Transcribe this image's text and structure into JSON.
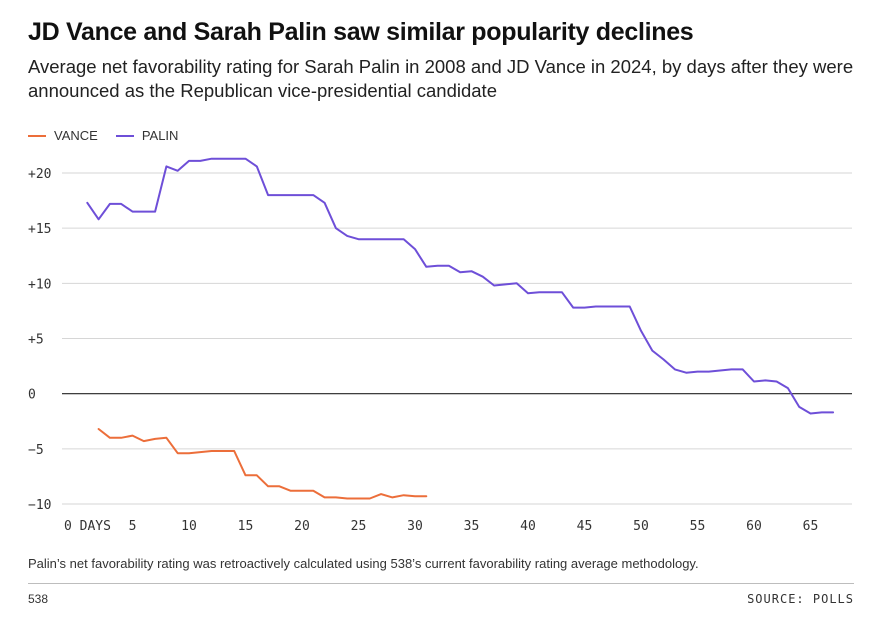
{
  "chart_data": {
    "type": "line",
    "title": "JD Vance and Sarah Palin saw similar popularity declines",
    "subtitle": "Average net favorability rating for Sarah Palin in 2008 and JD Vance in 2024, by days after they were announced as the Republican vice-presidential candidate",
    "xlabel": "DAYS",
    "ylabel": "",
    "xlim": [
      0,
      67
    ],
    "ylim": [
      -10,
      20
    ],
    "x_ticks": [
      0,
      5,
      10,
      15,
      20,
      25,
      30,
      35,
      40,
      45,
      50,
      55,
      60,
      65
    ],
    "x_tick_labels": [
      "0 DAYS",
      "5",
      "10",
      "15",
      "20",
      "25",
      "30",
      "35",
      "40",
      "45",
      "50",
      "55",
      "60",
      "65"
    ],
    "y_ticks": [
      -10,
      -5,
      0,
      5,
      10,
      15,
      20
    ],
    "y_tick_labels": [
      "−10",
      "−5",
      "0",
      "+5",
      "+10",
      "+15",
      "+20"
    ],
    "grid": true,
    "legend_position": "top-left",
    "series": [
      {
        "name": "VANCE",
        "color": "#ec6e3a",
        "x": [
          2,
          3,
          4,
          5,
          6,
          7,
          8,
          9,
          10,
          11,
          12,
          13,
          14,
          15,
          16,
          17,
          18,
          19,
          20,
          21,
          22,
          23,
          24,
          25,
          26,
          27,
          28,
          29,
          30,
          31
        ],
        "y": [
          -3.2,
          -4.0,
          -4.0,
          -3.8,
          -4.3,
          -4.1,
          -4.0,
          -5.4,
          -5.4,
          -5.3,
          -5.2,
          -5.2,
          -5.2,
          -7.4,
          -7.4,
          -8.4,
          -8.4,
          -8.8,
          -8.8,
          -8.8,
          -9.4,
          -9.4,
          -9.5,
          -9.5,
          -9.5,
          -9.1,
          -9.4,
          -9.2,
          -9.3,
          -9.3
        ]
      },
      {
        "name": "PALIN",
        "color": "#6e4fd8",
        "x": [
          1,
          2,
          3,
          4,
          5,
          6,
          7,
          8,
          9,
          10,
          11,
          12,
          13,
          14,
          15,
          16,
          17,
          18,
          19,
          20,
          21,
          22,
          23,
          24,
          25,
          26,
          27,
          28,
          29,
          30,
          31,
          32,
          33,
          34,
          35,
          36,
          37,
          38,
          39,
          40,
          41,
          42,
          43,
          44,
          45,
          46,
          47,
          48,
          49,
          50,
          51,
          52,
          53,
          54,
          55,
          56,
          57,
          58,
          59,
          60,
          61,
          62,
          63,
          64,
          65,
          66,
          67
        ],
        "y": [
          17.3,
          15.8,
          17.2,
          17.2,
          16.5,
          16.5,
          16.5,
          20.6,
          20.2,
          21.1,
          21.1,
          21.3,
          21.3,
          21.3,
          21.3,
          20.6,
          18.0,
          18.0,
          18.0,
          18.0,
          18.0,
          17.3,
          15.0,
          14.3,
          14.0,
          14.0,
          14.0,
          14.0,
          14.0,
          13.1,
          11.5,
          11.6,
          11.6,
          11.0,
          11.1,
          10.6,
          9.8,
          9.9,
          10.0,
          9.1,
          9.2,
          9.2,
          9.2,
          7.8,
          7.8,
          7.9,
          7.9,
          7.9,
          7.9,
          5.7,
          3.9,
          3.1,
          2.2,
          1.9,
          2.0,
          2.0,
          2.1,
          2.2,
          2.2,
          1.1,
          1.2,
          1.1,
          0.5,
          -1.2,
          -1.8,
          -1.7,
          -1.7
        ]
      }
    ]
  },
  "footnote": "Palin’s net favorability rating was retroactively calculated using 538’s current favorability rating average methodology.",
  "brand": "538",
  "source": "SOURCE: POLLS"
}
